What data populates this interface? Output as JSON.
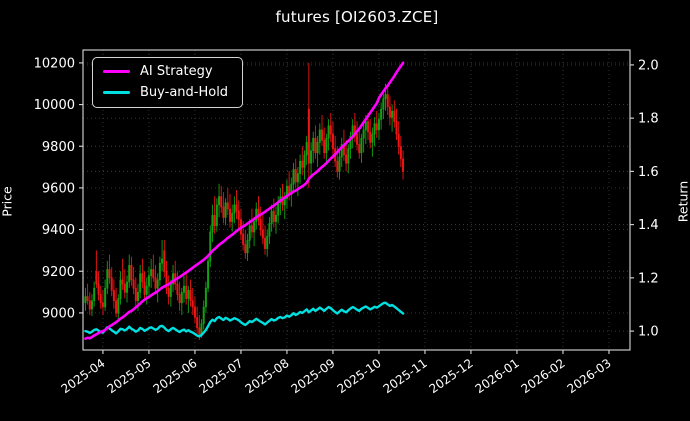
{
  "title": "futures [OI2603.ZCE]",
  "colors": {
    "background": "#000000",
    "ai_strategy": "#ff00ff",
    "buy_and_hold": "#00e0e0",
    "candle_up": "#13a113",
    "candle_down": "#f01515",
    "grid": "#3c3c3c",
    "spine": "#d9d9d9",
    "text": "#ffffff"
  },
  "legend": {
    "items": [
      {
        "label": "AI Strategy",
        "color": "#ff00ff"
      },
      {
        "label": "Buy-and-Hold",
        "color": "#00e0e0"
      }
    ]
  },
  "axes": {
    "left": {
      "label": "Price",
      "ticks": [
        9000,
        9200,
        9400,
        9600,
        9800,
        10000,
        10200
      ],
      "range": [
        8822,
        10262
      ]
    },
    "right": {
      "label": "Return",
      "ticks": [
        1.0,
        1.2,
        1.4,
        1.6,
        1.8,
        2.0
      ],
      "range": [
        0.929,
        2.056
      ]
    },
    "x": {
      "tick_labels": [
        "2025-04",
        "2025-05",
        "2025-06",
        "2025-07",
        "2025-08",
        "2025-09",
        "2025-10",
        "2025-11",
        "2025-12",
        "2026-01",
        "2026-02",
        "2026-03"
      ],
      "tick_positions": [
        8,
        29,
        50,
        71,
        92,
        113,
        134,
        155,
        176,
        197,
        218,
        239
      ],
      "range": [
        -1.1,
        248.6
      ],
      "label_rotation_deg": -35
    },
    "grid": true
  },
  "chart_data": {
    "type": "candlestick+line",
    "x_unit": "trading-day index (2025-03 through 2025-10 data, axis extends to 2026-03)",
    "candles": {
      "price_axis": "left",
      "ohlc": [
        [
          9050,
          9120,
          9010,
          9080
        ],
        [
          9080,
          9140,
          9040,
          9060
        ],
        [
          9060,
          9100,
          8990,
          9020
        ],
        [
          9020,
          9090,
          8985,
          9060
        ],
        [
          9060,
          9150,
          9030,
          9120
        ],
        [
          9200,
          9300,
          9120,
          9140
        ],
        [
          9140,
          9200,
          9060,
          9090
        ],
        [
          9090,
          9130,
          9020,
          9050
        ],
        [
          9050,
          9110,
          8990,
          9030
        ],
        [
          9030,
          9160,
          9010,
          9120
        ],
        [
          9120,
          9250,
          9090,
          9210
        ],
        [
          9210,
          9280,
          9140,
          9170
        ],
        [
          9170,
          9220,
          9080,
          9110
        ],
        [
          9110,
          9160,
          9020,
          9060
        ],
        [
          9060,
          9120,
          8980,
          9000
        ],
        [
          9000,
          9090,
          8960,
          9070
        ],
        [
          9070,
          9200,
          9040,
          9160
        ],
        [
          9160,
          9260,
          9110,
          9140
        ],
        [
          9140,
          9210,
          9070,
          9100
        ],
        [
          9100,
          9180,
          9050,
          9150
        ],
        [
          9150,
          9280,
          9120,
          9230
        ],
        [
          9230,
          9270,
          9130,
          9160
        ],
        [
          9160,
          9220,
          9090,
          9120
        ],
        [
          9120,
          9170,
          9030,
          9060
        ],
        [
          9060,
          9140,
          9010,
          9100
        ],
        [
          9100,
          9230,
          9070,
          9190
        ],
        [
          9190,
          9260,
          9120,
          9150
        ],
        [
          9150,
          9200,
          9060,
          9090
        ],
        [
          9090,
          9170,
          9040,
          9130
        ],
        [
          9130,
          9220,
          9080,
          9180
        ],
        [
          9180,
          9260,
          9120,
          9210
        ],
        [
          9210,
          9280,
          9150,
          9170
        ],
        [
          9170,
          9230,
          9090,
          9120
        ],
        [
          9120,
          9190,
          9050,
          9160
        ],
        [
          9160,
          9270,
          9130,
          9240
        ],
        [
          9240,
          9350,
          9200,
          9260
        ],
        [
          9300,
          9350,
          9170,
          9200
        ],
        [
          9200,
          9250,
          9090,
          9120
        ],
        [
          9120,
          9180,
          9040,
          9080
        ],
        [
          9080,
          9160,
          9030,
          9140
        ],
        [
          9140,
          9230,
          9100,
          9190
        ],
        [
          9190,
          9250,
          9110,
          9140
        ],
        [
          9140,
          9200,
          9060,
          9090
        ],
        [
          9090,
          9150,
          9010,
          9050
        ],
        [
          9050,
          9120,
          8990,
          9100
        ],
        [
          9100,
          9180,
          9050,
          9130
        ],
        [
          9130,
          9190,
          9040,
          9070
        ],
        [
          9070,
          9130,
          9000,
          9110
        ],
        [
          9110,
          9160,
          9030,
          9060
        ],
        [
          9060,
          9120,
          8990,
          9030
        ],
        [
          9030,
          9080,
          8950,
          8980
        ],
        [
          8980,
          9030,
          8900,
          8930
        ],
        [
          8930,
          8990,
          8870,
          8900
        ],
        [
          8900,
          8970,
          8880,
          8950
        ],
        [
          8950,
          9060,
          8920,
          9030
        ],
        [
          9030,
          9150,
          9000,
          9120
        ],
        [
          9120,
          9280,
          9100,
          9250
        ],
        [
          9250,
          9420,
          9220,
          9390
        ],
        [
          9390,
          9520,
          9340,
          9470
        ],
        [
          9470,
          9560,
          9380,
          9420
        ],
        [
          9420,
          9550,
          9390,
          9520
        ],
        [
          9520,
          9620,
          9460,
          9560
        ],
        [
          9560,
          9610,
          9480,
          9510
        ],
        [
          9510,
          9580,
          9430,
          9460
        ],
        [
          9460,
          9550,
          9420,
          9530
        ],
        [
          9530,
          9600,
          9470,
          9500
        ],
        [
          9500,
          9570,
          9410,
          9440
        ],
        [
          9440,
          9520,
          9390,
          9480
        ],
        [
          9480,
          9560,
          9430,
          9520
        ],
        [
          9520,
          9590,
          9450,
          9490
        ],
        [
          9490,
          9540,
          9400,
          9450
        ],
        [
          9450,
          9500,
          9350,
          9380
        ],
        [
          9380,
          9440,
          9300,
          9330
        ],
        [
          9330,
          9400,
          9260,
          9290
        ],
        [
          9290,
          9380,
          9250,
          9350
        ],
        [
          9350,
          9450,
          9310,
          9420
        ],
        [
          9420,
          9500,
          9360,
          9390
        ],
        [
          9390,
          9460,
          9320,
          9440
        ],
        [
          9440,
          9530,
          9400,
          9500
        ],
        [
          9500,
          9560,
          9420,
          9450
        ],
        [
          9450,
          9510,
          9370,
          9400
        ],
        [
          9400,
          9470,
          9330,
          9360
        ],
        [
          9360,
          9420,
          9280,
          9310
        ],
        [
          9310,
          9400,
          9270,
          9370
        ],
        [
          9370,
          9460,
          9330,
          9430
        ],
        [
          9430,
          9520,
          9390,
          9490
        ],
        [
          9490,
          9550,
          9410,
          9440
        ],
        [
          9440,
          9510,
          9380,
          9470
        ],
        [
          9470,
          9560,
          9430,
          9530
        ],
        [
          9530,
          9600,
          9470,
          9560
        ],
        [
          9560,
          9620,
          9490,
          9520
        ],
        [
          9520,
          9580,
          9450,
          9550
        ],
        [
          9550,
          9640,
          9500,
          9610
        ],
        [
          9610,
          9680,
          9540,
          9570
        ],
        [
          9570,
          9650,
          9510,
          9620
        ],
        [
          9620,
          9720,
          9580,
          9690
        ],
        [
          9690,
          9740,
          9600,
          9630
        ],
        [
          9630,
          9700,
          9560,
          9670
        ],
        [
          9670,
          9760,
          9620,
          9730
        ],
        [
          9730,
          9800,
          9660,
          9700
        ],
        [
          9700,
          9780,
          9640,
          9760
        ],
        [
          9760,
          9850,
          9710,
          9820
        ],
        [
          9980,
          10200,
          9600,
          9720
        ],
        [
          9720,
          9820,
          9650,
          9780
        ],
        [
          9780,
          9870,
          9720,
          9840
        ],
        [
          9840,
          9900,
          9740,
          9770
        ],
        [
          9770,
          9850,
          9700,
          9820
        ],
        [
          9820,
          9910,
          9760,
          9880
        ],
        [
          9880,
          9950,
          9800,
          9830
        ],
        [
          9830,
          9890,
          9740,
          9770
        ],
        [
          9770,
          9860,
          9720,
          9840
        ],
        [
          9840,
          9930,
          9780,
          9900
        ],
        [
          9900,
          9960,
          9820,
          9860
        ],
        [
          9860,
          9920,
          9760,
          9790
        ],
        [
          9790,
          9850,
          9700,
          9730
        ],
        [
          9730,
          9800,
          9650,
          9680
        ],
        [
          9680,
          9780,
          9640,
          9750
        ],
        [
          9750,
          9840,
          9700,
          9810
        ],
        [
          9810,
          9880,
          9730,
          9760
        ],
        [
          9760,
          9830,
          9680,
          9720
        ],
        [
          9720,
          9810,
          9670,
          9790
        ],
        [
          9790,
          9870,
          9740,
          9850
        ],
        [
          9850,
          9930,
          9790,
          9900
        ],
        [
          9900,
          9960,
          9820,
          9860
        ],
        [
          9860,
          9920,
          9780,
          9810
        ],
        [
          9810,
          9880,
          9740,
          9770
        ],
        [
          9770,
          9860,
          9720,
          9840
        ],
        [
          9840,
          9910,
          9770,
          9880
        ],
        [
          9880,
          9950,
          9810,
          9920
        ],
        [
          9920,
          9960,
          9830,
          9870
        ],
        [
          9870,
          9930,
          9790,
          9820
        ],
        [
          9820,
          9890,
          9750,
          9860
        ],
        [
          9860,
          9940,
          9800,
          9910
        ],
        [
          9910,
          9970,
          9840,
          9880
        ],
        [
          9880,
          9960,
          9830,
          9930
        ],
        [
          9930,
          10010,
          9880,
          9980
        ],
        [
          9980,
          10060,
          9930,
          10030
        ],
        [
          10030,
          10100,
          9970,
          10050
        ],
        [
          10050,
          10090,
          9950,
          9990
        ],
        [
          9990,
          10040,
          9900,
          9940
        ],
        [
          9940,
          10000,
          9870,
          9970
        ],
        [
          9970,
          10020,
          9890,
          9920
        ],
        [
          9920,
          9980,
          9830,
          9860
        ],
        [
          9860,
          9920,
          9760,
          9800
        ],
        [
          9800,
          9850,
          9700,
          9740
        ],
        [
          9740,
          9780,
          9640,
          9680
        ]
      ]
    },
    "series": [
      {
        "name": "AI Strategy",
        "axis": "right",
        "color": "#ff00ff",
        "values": [
          0.972,
          0.975,
          0.973,
          0.978,
          0.984,
          0.988,
          0.993,
          0.997,
          1.0,
          1.004,
          1.011,
          1.018,
          1.022,
          1.028,
          1.033,
          1.04,
          1.047,
          1.052,
          1.058,
          1.065,
          1.072,
          1.076,
          1.082,
          1.089,
          1.096,
          1.104,
          1.112,
          1.118,
          1.124,
          1.128,
          1.134,
          1.14,
          1.144,
          1.15,
          1.157,
          1.163,
          1.168,
          1.172,
          1.176,
          1.182,
          1.188,
          1.193,
          1.198,
          1.203,
          1.209,
          1.215,
          1.22,
          1.226,
          1.232,
          1.238,
          1.244,
          1.25,
          1.256,
          1.262,
          1.268,
          1.275,
          1.283,
          1.292,
          1.302,
          1.308,
          1.316,
          1.324,
          1.33,
          1.336,
          1.343,
          1.35,
          1.356,
          1.362,
          1.369,
          1.376,
          1.382,
          1.388,
          1.393,
          1.398,
          1.404,
          1.41,
          1.415,
          1.421,
          1.428,
          1.433,
          1.438,
          1.443,
          1.448,
          1.454,
          1.46,
          1.466,
          1.471,
          1.477,
          1.484,
          1.491,
          1.496,
          1.502,
          1.508,
          1.513,
          1.518,
          1.524,
          1.528,
          1.533,
          1.539,
          1.544,
          1.55,
          1.557,
          1.572,
          1.58,
          1.588,
          1.594,
          1.601,
          1.609,
          1.617,
          1.623,
          1.631,
          1.64,
          1.648,
          1.656,
          1.664,
          1.672,
          1.682,
          1.69,
          1.698,
          1.706,
          1.714,
          1.722,
          1.73,
          1.74,
          1.75,
          1.76,
          1.772,
          1.784,
          1.796,
          1.808,
          1.82,
          1.832,
          1.844,
          1.856,
          1.876,
          1.888,
          1.9,
          1.912,
          1.922,
          1.934,
          1.946,
          1.958,
          1.972,
          1.984,
          1.996,
          2.008
        ]
      },
      {
        "name": "Buy-and-Hold",
        "axis": "right",
        "color": "#00e0e0",
        "derived": "close / first close (computed from candles.ohlc)"
      }
    ]
  }
}
